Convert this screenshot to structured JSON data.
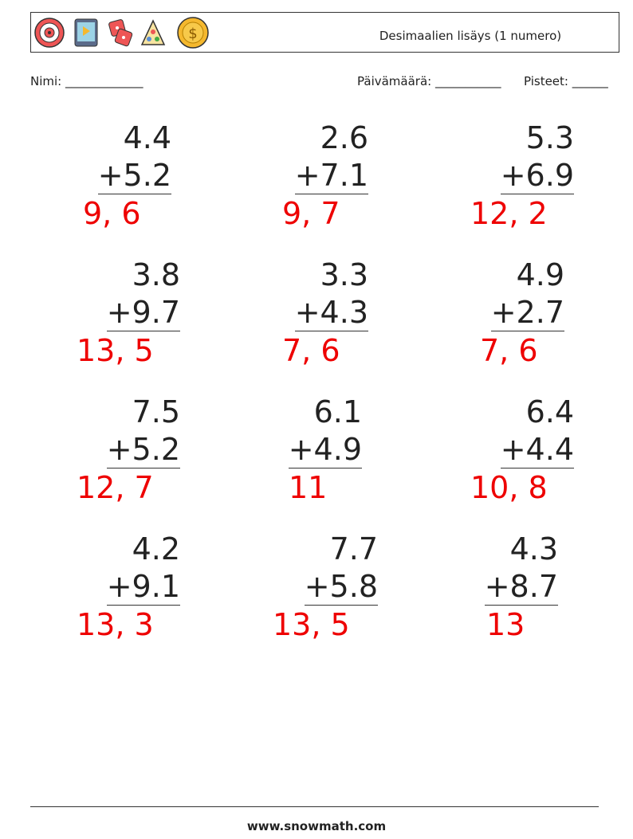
{
  "header": {
    "title": "Desimaalien lisäys (1 numero)"
  },
  "fields": {
    "name": "Nimi: _____________",
    "date": "Päivämäärä: ___________",
    "score": "Pisteet: ______"
  },
  "problems": [
    {
      "a": "4.4",
      "b": "+5.2",
      "answer": "9, 6"
    },
    {
      "a": "2.6",
      "b": "+7.1",
      "answer": "9, 7"
    },
    {
      "a": "5.3",
      "b": "+6.9",
      "answer": "12, 2"
    },
    {
      "a": "3.8",
      "b": "+9.7",
      "answer": "13, 5"
    },
    {
      "a": "3.3",
      "b": "+4.3",
      "answer": "7, 6"
    },
    {
      "a": "4.9",
      "b": "+2.7",
      "answer": "7, 6"
    },
    {
      "a": "7.5",
      "b": "+5.2",
      "answer": "12, 7"
    },
    {
      "a": "6.1",
      "b": "+4.9",
      "answer": "11"
    },
    {
      "a": "6.4",
      "b": "+4.4",
      "answer": "10, 8"
    },
    {
      "a": "4.2",
      "b": "+9.1",
      "answer": "13, 3"
    },
    {
      "a": "7.7",
      "b": "+5.8",
      "answer": "13, 5"
    },
    {
      "a": "4.3",
      "b": "+8.7",
      "answer": "13"
    }
  ],
  "footer": {
    "url": "www.snowmath.com"
  }
}
